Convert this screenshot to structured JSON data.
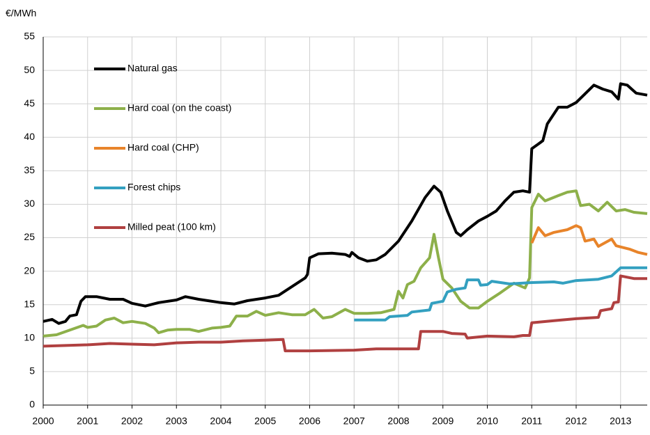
{
  "chart_data": {
    "type": "line",
    "y_label": "€/MWh",
    "xlim": [
      2000,
      2013.6
    ],
    "xticks": [
      2000,
      2001,
      2002,
      2003,
      2004,
      2005,
      2006,
      2007,
      2008,
      2009,
      2010,
      2011,
      2012,
      2013
    ],
    "ylim": [
      0,
      55
    ],
    "yticks": [
      0,
      5,
      10,
      15,
      20,
      25,
      30,
      35,
      40,
      45,
      50,
      55
    ],
    "grid": true,
    "series": [
      {
        "name": "Natural gas",
        "color": "#000000",
        "x": [
          2000,
          2000.2,
          2000.35,
          2000.5,
          2000.6,
          2000.75,
          2000.85,
          2000.95,
          2001.2,
          2001.5,
          2001.8,
          2002.0,
          2002.3,
          2002.6,
          2003.0,
          2003.2,
          2003.5,
          2003.8,
          2004.0,
          2004.3,
          2004.6,
          2005.0,
          2005.3,
          2005.6,
          2005.9,
          2005.95,
          2006.0,
          2006.2,
          2006.5,
          2006.8,
          2006.9,
          2006.95,
          2007.1,
          2007.3,
          2007.5,
          2007.7,
          2008.0,
          2008.3,
          2008.6,
          2008.8,
          2008.95,
          2009.1,
          2009.3,
          2009.4,
          2009.55,
          2009.8,
          2010.0,
          2010.2,
          2010.4,
          2010.6,
          2010.8,
          2010.95,
          2011.0,
          2011.15,
          2011.25,
          2011.35,
          2011.6,
          2011.8,
          2012.0,
          2012.2,
          2012.4,
          2012.6,
          2012.8,
          2012.95,
          2013.0,
          2013.15,
          2013.35,
          2013.6
        ],
        "values": [
          12.5,
          12.8,
          12.2,
          12.5,
          13.3,
          13.5,
          15.5,
          16.2,
          16.2,
          15.8,
          15.8,
          15.2,
          14.8,
          15.3,
          15.7,
          16.2,
          15.8,
          15.5,
          15.3,
          15.1,
          15.6,
          16.0,
          16.4,
          17.7,
          19.0,
          19.5,
          22.0,
          22.6,
          22.7,
          22.5,
          22.2,
          22.8,
          22.0,
          21.5,
          21.7,
          22.5,
          24.5,
          27.5,
          31.0,
          32.7,
          31.8,
          29.0,
          25.8,
          25.3,
          26.2,
          27.5,
          28.2,
          29.0,
          30.5,
          31.8,
          32.0,
          31.8,
          38.3,
          39.0,
          39.5,
          42.0,
          44.5,
          44.5,
          45.2,
          46.5,
          47.8,
          47.2,
          46.8,
          45.7,
          48.0,
          47.8,
          46.6,
          46.3
        ]
      },
      {
        "name": "Hard coal (on the coast)",
        "color": "#8db04a",
        "x": [
          2000,
          2000.3,
          2000.6,
          2000.9,
          2001.0,
          2001.2,
          2001.4,
          2001.6,
          2001.8,
          2002.0,
          2002.3,
          2002.5,
          2002.6,
          2002.8,
          2003.0,
          2003.3,
          2003.5,
          2003.8,
          2004.0,
          2004.2,
          2004.35,
          2004.6,
          2004.8,
          2005.0,
          2005.3,
          2005.6,
          2005.9,
          2006.1,
          2006.3,
          2006.5,
          2006.8,
          2007.0,
          2007.3,
          2007.6,
          2007.9,
          2008.0,
          2008.1,
          2008.2,
          2008.35,
          2008.5,
          2008.7,
          2008.8,
          2008.9,
          2009.0,
          2009.2,
          2009.4,
          2009.6,
          2009.8,
          2010.0,
          2010.3,
          2010.6,
          2010.85,
          2010.95,
          2011.0,
          2011.15,
          2011.3,
          2011.6,
          2011.8,
          2012.0,
          2012.1,
          2012.3,
          2012.5,
          2012.7,
          2012.9,
          2013.1,
          2013.3,
          2013.6
        ],
        "values": [
          10.3,
          10.5,
          11.2,
          11.9,
          11.6,
          11.8,
          12.7,
          13.0,
          12.3,
          12.5,
          12.2,
          11.5,
          10.8,
          11.2,
          11.3,
          11.3,
          11.0,
          11.5,
          11.6,
          11.8,
          13.3,
          13.3,
          14.0,
          13.4,
          13.8,
          13.5,
          13.5,
          14.3,
          13.0,
          13.2,
          14.3,
          13.7,
          13.7,
          13.8,
          14.3,
          17.0,
          16.0,
          18.0,
          18.5,
          20.5,
          22.0,
          25.5,
          22.0,
          18.8,
          17.5,
          15.5,
          14.5,
          14.5,
          15.5,
          16.8,
          18.2,
          17.5,
          19.0,
          29.5,
          31.5,
          30.5,
          31.3,
          31.8,
          32.0,
          29.8,
          30.0,
          29.0,
          30.3,
          29.0,
          29.2,
          28.8,
          28.6
        ]
      },
      {
        "name": "Hard coal (CHP)",
        "color": "#e8842a",
        "x": [
          2011.0,
          2011.15,
          2011.3,
          2011.5,
          2011.8,
          2012.0,
          2012.1,
          2012.2,
          2012.4,
          2012.5,
          2012.8,
          2012.9,
          2013.2,
          2013.4,
          2013.6
        ],
        "values": [
          24.2,
          26.5,
          25.3,
          25.8,
          26.2,
          26.8,
          26.5,
          24.5,
          24.8,
          23.7,
          24.8,
          23.8,
          23.3,
          22.8,
          22.5
        ]
      },
      {
        "name": "Forest chips",
        "color": "#33a0c0",
        "x": [
          2007.0,
          2007.7,
          2007.8,
          2008.2,
          2008.3,
          2008.7,
          2008.75,
          2009.0,
          2009.1,
          2009.3,
          2009.5,
          2009.55,
          2009.8,
          2009.85,
          2010.0,
          2010.1,
          2010.5,
          2011.0,
          2011.5,
          2011.7,
          2012.0,
          2012.5,
          2012.8,
          2013.0,
          2013.6
        ],
        "values": [
          12.7,
          12.7,
          13.2,
          13.4,
          13.9,
          14.2,
          15.2,
          15.5,
          16.9,
          17.3,
          17.5,
          18.7,
          18.7,
          17.9,
          18.0,
          18.5,
          18.1,
          18.3,
          18.4,
          18.2,
          18.6,
          18.8,
          19.3,
          20.5,
          20.5
        ]
      },
      {
        "name": "Milled peat (100 km)",
        "color": "#b04040",
        "x": [
          2000,
          2001,
          2001.5,
          2002,
          2002.5,
          2003,
          2003.5,
          2004,
          2004.5,
          2005.0,
          2005.4,
          2005.45,
          2006.0,
          2007.0,
          2007.5,
          2008.0,
          2008.45,
          2008.5,
          2009.0,
          2009.2,
          2009.5,
          2009.55,
          2010.0,
          2010.6,
          2010.8,
          2010.95,
          2011.0,
          2011.5,
          2012.0,
          2012.5,
          2012.55,
          2012.8,
          2012.85,
          2012.95,
          2013.0,
          2013.3,
          2013.6
        ],
        "values": [
          8.8,
          9.0,
          9.2,
          9.1,
          9.0,
          9.3,
          9.4,
          9.4,
          9.6,
          9.7,
          9.8,
          8.1,
          8.1,
          8.2,
          8.4,
          8.4,
          8.4,
          11.0,
          11.0,
          10.7,
          10.6,
          10.0,
          10.3,
          10.2,
          10.4,
          10.4,
          12.3,
          12.6,
          12.9,
          13.1,
          14.1,
          14.4,
          15.3,
          15.4,
          19.3,
          18.9,
          18.9
        ]
      }
    ]
  }
}
